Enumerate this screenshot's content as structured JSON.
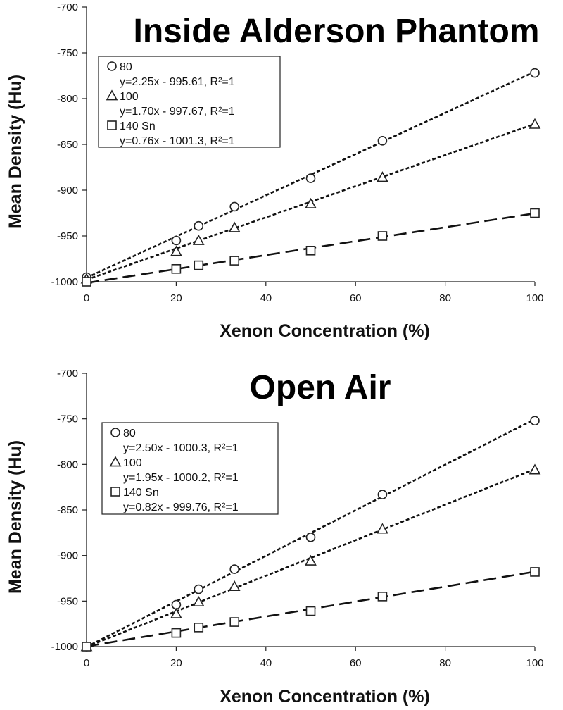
{
  "chart_data": [
    {
      "type": "scatter",
      "title": "Inside Alderson Phantom",
      "xlabel": "Xenon Concentration (%)",
      "ylabel": "Mean Density (Hu)",
      "xlim": [
        0,
        100
      ],
      "ylim": [
        -1000,
        -700
      ],
      "xticks": [
        "0",
        "20",
        "40",
        "60",
        "80",
        "100"
      ],
      "yticks": [
        "-1000",
        "-950",
        "-900",
        "-850",
        "-800",
        "-750",
        "-700"
      ],
      "grid": false,
      "legend_position": "top-left",
      "x": [
        0,
        20,
        25,
        33,
        50,
        66,
        100
      ],
      "series": [
        {
          "name": "80",
          "marker": "circle",
          "values": [
            -995,
            -955,
            -939,
            -918,
            -887,
            -846,
            -772
          ],
          "trendline": "y=2.25x - 995.61, R²=1",
          "slope": 2.25,
          "intercept": -995.61,
          "line_style": "dotted"
        },
        {
          "name": "100",
          "marker": "triangle",
          "values": [
            -997,
            -967,
            -955,
            -941,
            -915,
            -886,
            -828
          ],
          "trendline": "y=1.70x - 997.67, R²=1",
          "slope": 1.7,
          "intercept": -997.67,
          "line_style": "dotted"
        },
        {
          "name": "140 Sn",
          "marker": "square",
          "values": [
            -1000,
            -986,
            -982,
            -977,
            -966,
            -950,
            -925
          ],
          "trendline": "y=0.76x - 1001.3, R²=1",
          "slope": 0.76,
          "intercept": -1001.3,
          "line_style": "dashed"
        }
      ]
    },
    {
      "type": "scatter",
      "title": "Open Air",
      "xlabel": "Xenon Concentration (%)",
      "ylabel": "Mean Density (Hu)",
      "xlim": [
        0,
        100
      ],
      "ylim": [
        -1000,
        -700
      ],
      "xticks": [
        "0",
        "20",
        "40",
        "60",
        "80",
        "100"
      ],
      "yticks": [
        "-1000",
        "-950",
        "-900",
        "-850",
        "-800",
        "-750",
        "-700"
      ],
      "grid": false,
      "legend_position": "top-left",
      "x": [
        0,
        20,
        25,
        33,
        50,
        66,
        100
      ],
      "series": [
        {
          "name": "80",
          "marker": "circle",
          "values": [
            -1000,
            -954,
            -937,
            -915,
            -880,
            -833,
            -752
          ],
          "trendline": "y=2.50x - 1000.3, R²=1",
          "slope": 2.5,
          "intercept": -1000.3,
          "line_style": "dotted"
        },
        {
          "name": "100",
          "marker": "triangle",
          "values": [
            -1000,
            -964,
            -951,
            -934,
            -906,
            -871,
            -806
          ],
          "trendline": "y=1.95x - 1000.2, R²=1",
          "slope": 1.95,
          "intercept": -1000.2,
          "line_style": "dotted"
        },
        {
          "name": "140 Sn",
          "marker": "square",
          "values": [
            -1000,
            -985,
            -979,
            -973,
            -961,
            -945,
            -918
          ],
          "trendline": "y=0.82x - 999.76, R²=1",
          "slope": 0.82,
          "intercept": -999.76,
          "line_style": "dashed"
        }
      ]
    }
  ]
}
